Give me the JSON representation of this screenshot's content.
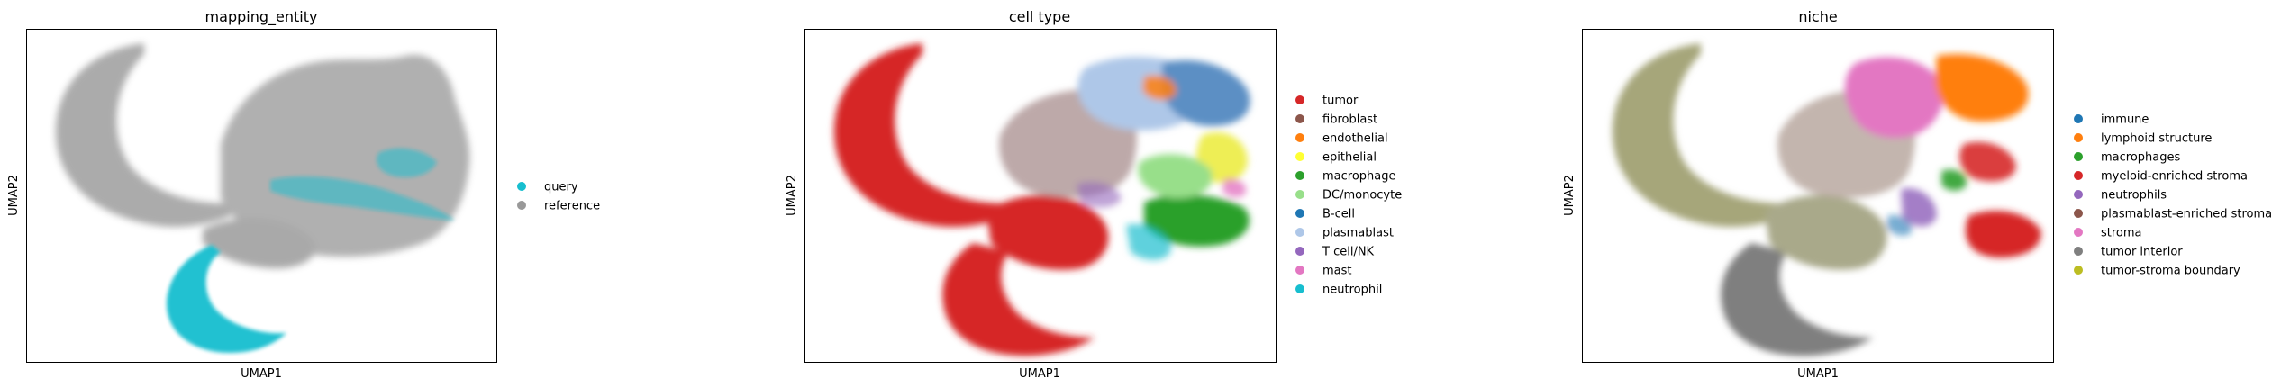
{
  "chart_data": [
    {
      "type": "scatter",
      "title": "mapping_entity",
      "xlabel": "UMAP1",
      "ylabel": "UMAP2",
      "grid": false,
      "legend_position": "right",
      "legend": [
        {
          "label": "query",
          "color": "#17becf"
        },
        {
          "label": "reference",
          "color": "#999999"
        }
      ]
    },
    {
      "type": "scatter",
      "title": "cell type",
      "xlabel": "UMAP1",
      "ylabel": "UMAP2",
      "grid": false,
      "legend_position": "right",
      "legend": [
        {
          "label": "tumor",
          "color": "#d62728"
        },
        {
          "label": "fibroblast",
          "color": "#8c564b"
        },
        {
          "label": "endothelial",
          "color": "#ff7f0e"
        },
        {
          "label": "epithelial",
          "color": "#ffff33"
        },
        {
          "label": "macrophage",
          "color": "#2ca02c"
        },
        {
          "label": "DC/monocyte",
          "color": "#98df8a"
        },
        {
          "label": "B-cell",
          "color": "#1f77b4"
        },
        {
          "label": "plasmablast",
          "color": "#aec7e8"
        },
        {
          "label": "T cell/NK",
          "color": "#9467bd"
        },
        {
          "label": "mast",
          "color": "#e377c2"
        },
        {
          "label": "neutrophil",
          "color": "#17becf"
        }
      ]
    },
    {
      "type": "scatter",
      "title": "niche",
      "xlabel": "UMAP1",
      "ylabel": "UMAP2",
      "grid": false,
      "legend_position": "right",
      "legend": [
        {
          "label": "immune",
          "color": "#1f77b4"
        },
        {
          "label": "lymphoid structure",
          "color": "#ff7f0e"
        },
        {
          "label": "macrophages",
          "color": "#2ca02c"
        },
        {
          "label": "myeloid-enriched stroma",
          "color": "#d62728"
        },
        {
          "label": "neutrophils",
          "color": "#9467bd"
        },
        {
          "label": "plasmablast-enriched stroma",
          "color": "#8c564b"
        },
        {
          "label": "stroma",
          "color": "#e377c2"
        },
        {
          "label": "tumor interior",
          "color": "#7f7f7f"
        },
        {
          "label": "tumor-stroma boundary",
          "color": "#bcbd22"
        }
      ]
    }
  ]
}
